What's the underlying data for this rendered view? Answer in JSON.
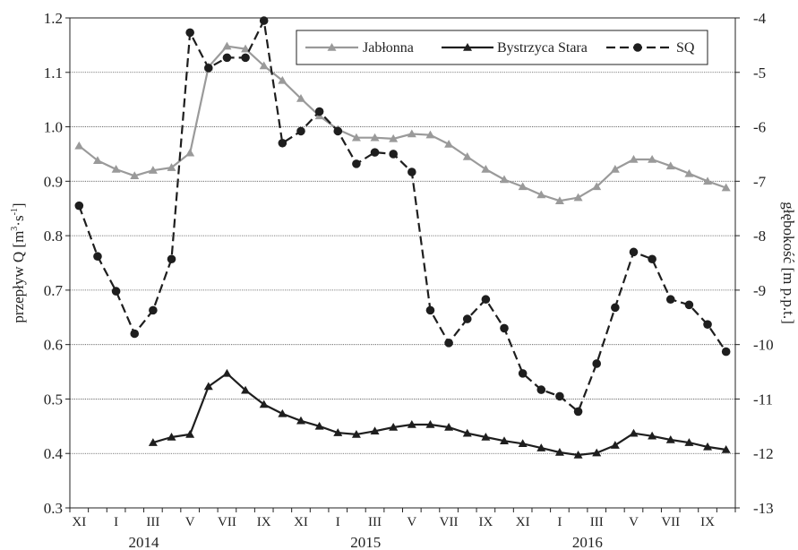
{
  "chart_data": {
    "type": "line",
    "ylabel_left": "przepływ Q [m3·s-1]",
    "ylabel_left_parts": {
      "main": "przepływ Q [m",
      "sup1": "3",
      "mid": "·s",
      "sup2": "-1",
      "end": "]"
    },
    "ylabel_right": "głębokość [m p.p.t.]",
    "ylim_left": [
      0.3,
      1.2
    ],
    "ylim_right": [
      -13,
      -4
    ],
    "yticks_left": [
      "0.3",
      "0.4",
      "0.5",
      "0.6",
      "0.7",
      "0.8",
      "0.9",
      "1.0",
      "1.1",
      "1.2"
    ],
    "yticks_right": [
      "-13",
      "-12",
      "-11",
      "-10",
      "-9",
      "-8",
      "-7",
      "-6",
      "-5",
      "-4"
    ],
    "xtick_labels": [
      "XI",
      "I",
      "III",
      "V",
      "VII",
      "IX",
      "XI",
      "I",
      "III",
      "V",
      "VII",
      "IX",
      "XI",
      "I",
      "III",
      "V",
      "VII",
      "IX"
    ],
    "year_labels": [
      "2014",
      "2015",
      "2016"
    ],
    "grid": true,
    "legend_position": "top-right",
    "series": [
      {
        "name": "Jabłonna",
        "axis": "left",
        "color": "#9a9a9a",
        "marker": "triangle",
        "dash": "solid",
        "values": [
          0.965,
          0.938,
          0.922,
          0.91,
          0.92,
          0.925,
          0.952,
          1.11,
          1.148,
          1.143,
          1.112,
          1.085,
          1.052,
          1.02,
          0.995,
          0.98,
          0.98,
          0.978,
          0.987,
          0.985,
          0.968,
          0.945,
          0.922,
          0.903,
          0.89,
          0.875,
          0.864,
          0.87,
          0.89,
          0.922,
          0.94,
          0.94,
          0.928,
          0.914,
          0.9,
          0.888
        ]
      },
      {
        "name": "Bystrzyca Stara",
        "axis": "left",
        "color": "#1e1e1e",
        "marker": "triangle",
        "dash": "solid",
        "values": [
          null,
          null,
          null,
          null,
          0.42,
          0.43,
          0.435,
          0.523,
          0.547,
          0.516,
          0.49,
          0.473,
          0.46,
          0.45,
          0.438,
          0.435,
          0.441,
          0.448,
          0.453,
          0.453,
          0.448,
          0.437,
          0.43,
          0.423,
          0.418,
          0.41,
          0.402,
          0.397,
          0.401,
          0.415,
          0.437,
          0.432,
          0.425,
          0.42,
          0.412,
          0.407
        ]
      },
      {
        "name": "SQ",
        "axis": "right",
        "color": "#1e1e1e",
        "marker": "circle",
        "dash": "dashed",
        "values": [
          -7.45,
          -8.38,
          -9.02,
          -9.8,
          -9.37,
          -8.43,
          -4.27,
          -4.92,
          -4.73,
          -4.73,
          -4.05,
          -6.3,
          -6.08,
          -5.72,
          -6.08,
          -6.68,
          -6.47,
          -6.5,
          -6.83,
          -9.37,
          -9.97,
          -9.53,
          -9.17,
          -9.7,
          -10.53,
          -10.83,
          -10.95,
          -11.23,
          -10.35,
          -9.32,
          -8.3,
          -8.43,
          -9.17,
          -9.27,
          -9.63,
          -10.13
        ]
      }
    ]
  }
}
